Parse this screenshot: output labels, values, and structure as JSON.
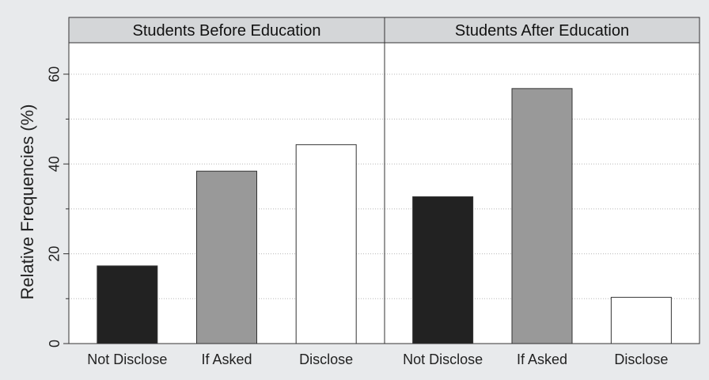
{
  "chart_data": {
    "type": "bar",
    "ylabel": "Relative Frequencies (%)",
    "ylim": [
      0,
      67
    ],
    "yticks": [
      0,
      20,
      40,
      60
    ],
    "minor_yticks": [
      10,
      30,
      50
    ],
    "grid": "horizontal dotted",
    "categories": [
      "Not Disclose",
      "If Asked",
      "Disclose"
    ],
    "bar_colors": [
      "#222222",
      "#999999",
      "#ffffff"
    ],
    "panels": [
      {
        "title": "Students Before Education",
        "values": [
          17.3,
          38.4,
          44.3
        ]
      },
      {
        "title": "Students After Education",
        "values": [
          32.7,
          56.8,
          10.3
        ]
      }
    ]
  }
}
